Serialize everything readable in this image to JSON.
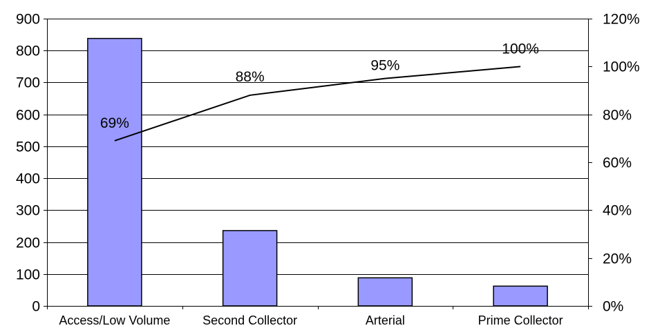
{
  "chart_data": {
    "type": "bar",
    "categories": [
      "Access/Low Volume",
      "Second Collector",
      "Arterial",
      "Prime Collector"
    ],
    "series": [
      {
        "type": "bar",
        "axis": "left",
        "values": [
          838,
          236,
          88,
          62
        ]
      },
      {
        "type": "line",
        "axis": "right",
        "values": [
          69,
          88,
          95,
          100
        ],
        "value_format": "percent"
      }
    ],
    "data_labels": [
      "69%",
      "88%",
      "95%",
      "100%"
    ],
    "y_left": {
      "range": [
        0,
        900
      ],
      "ticks": [
        0,
        100,
        200,
        300,
        400,
        500,
        600,
        700,
        800,
        900
      ],
      "tick_labels": [
        "0",
        "100",
        "200",
        "300",
        "400",
        "500",
        "600",
        "700",
        "800",
        "900"
      ]
    },
    "y_right": {
      "range": [
        0,
        120
      ],
      "ticks": [
        0,
        20,
        40,
        60,
        80,
        100,
        120
      ],
      "tick_labels": [
        "0%",
        "20%",
        "40%",
        "60%",
        "80%",
        "100%",
        "120%"
      ]
    },
    "title": "",
    "xlabel": "",
    "ylabel": "",
    "grid": true,
    "legend": "none",
    "colors": {
      "bar_fill": "#9999ff",
      "bar_stroke": "#000000",
      "line": "#000000"
    }
  }
}
